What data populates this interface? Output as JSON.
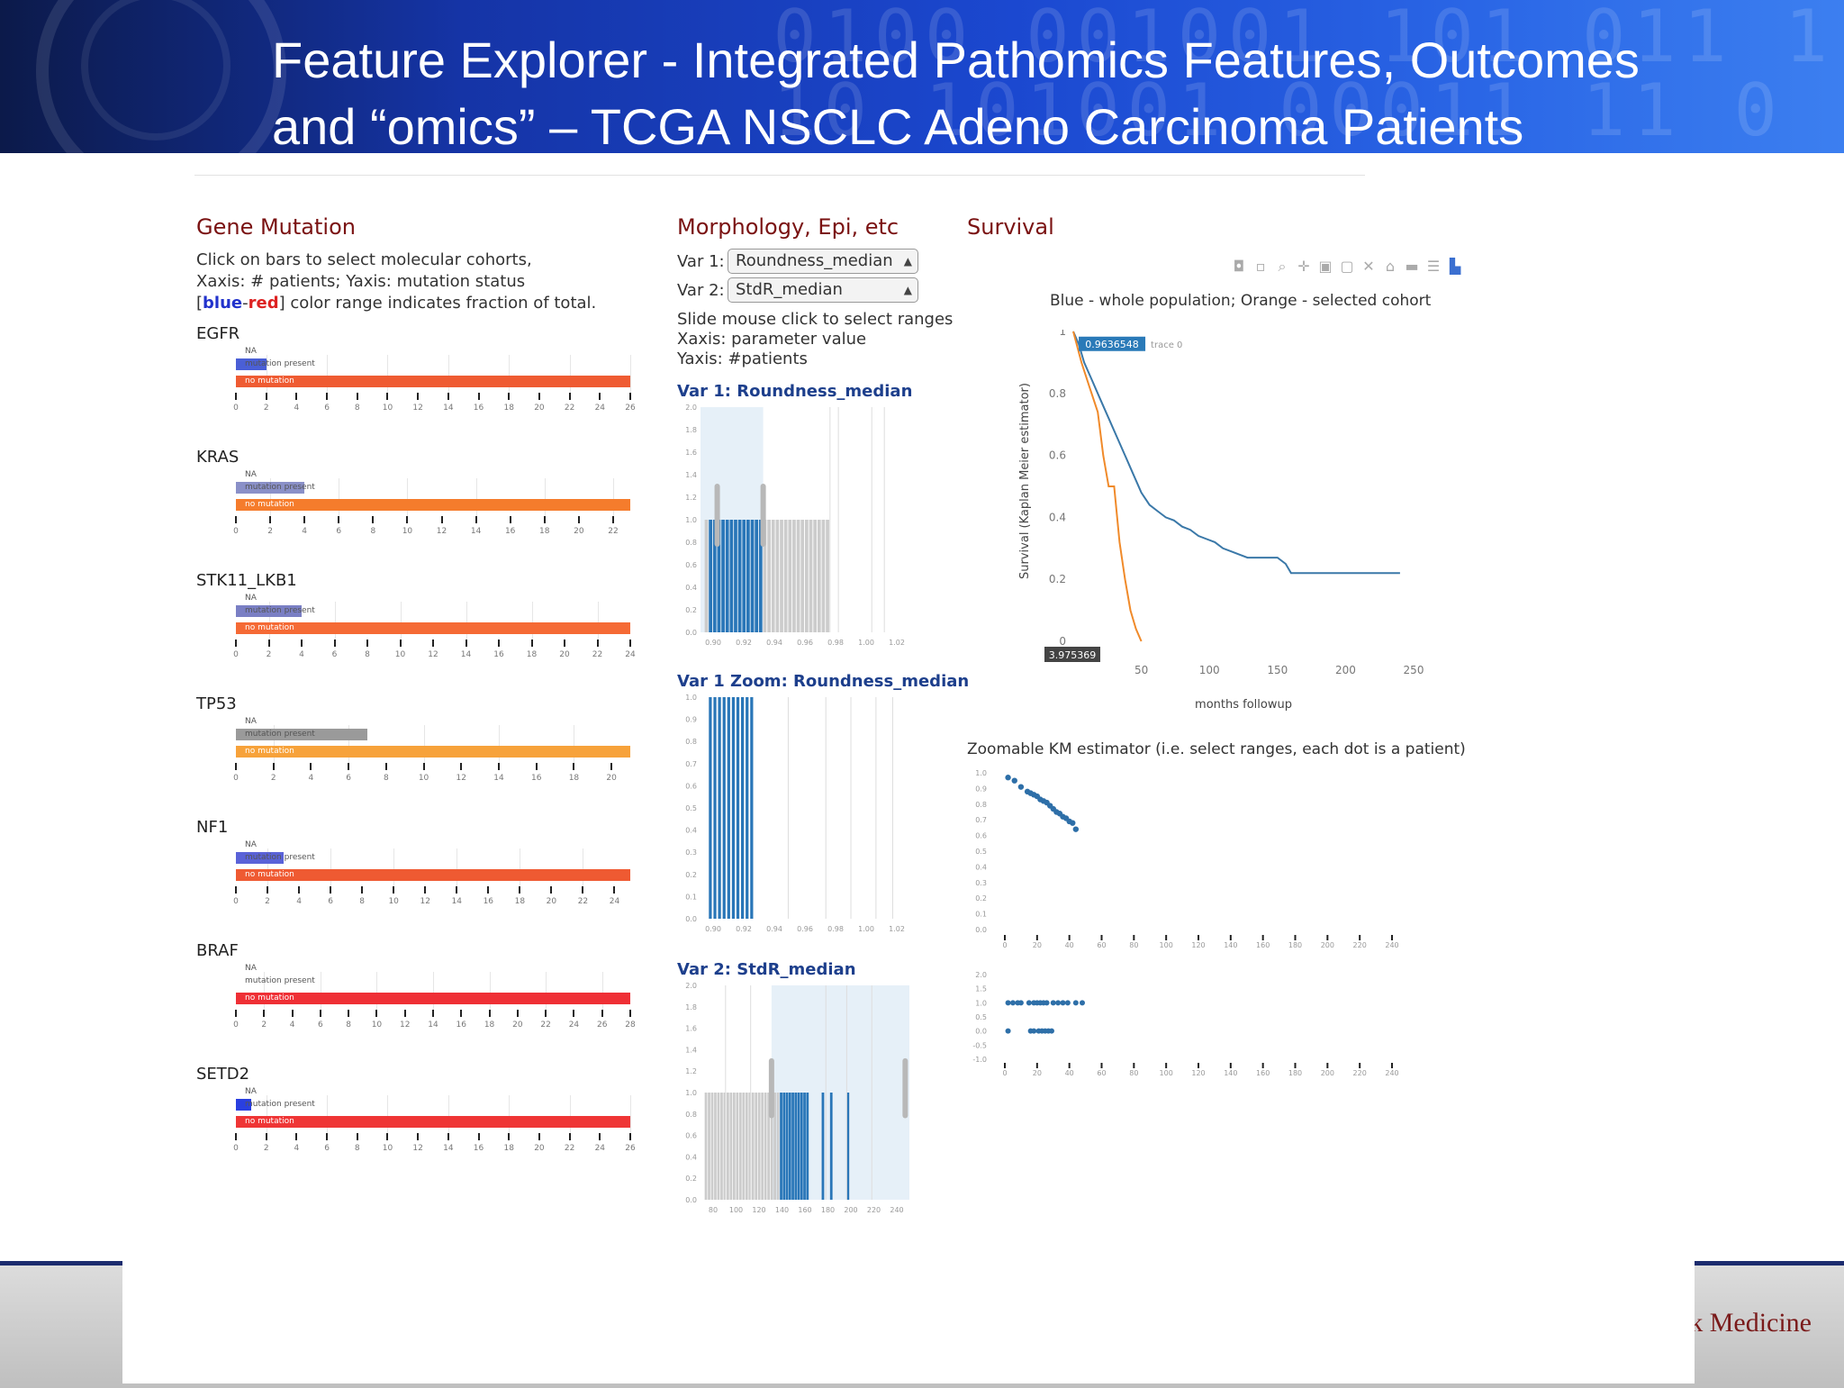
{
  "slide": {
    "title_line1": "Feature Explorer - Integrated  Pathomics Features, Outcomes",
    "title_line2": "and “omics” – TCGA NSCLC Adeno Carcinoma Patients",
    "banner_digits_1": "0100 001001 101 011 1",
    "banner_digits_2": "10 101001 00011 11 0",
    "logo_text": "ook Medicine"
  },
  "colors": {
    "blue": "#2976b8",
    "orange": "#f07f2a",
    "red": "#ef4a3c",
    "lightblue": "#e6f0f8",
    "grey": "#cccccc"
  },
  "gene": {
    "title": "Gene Mutation",
    "desc1": "Click on bars to select molecular cohorts,",
    "desc2": "Xaxis: # patients; Yaxis: mutation status",
    "desc3_a": "[",
    "desc3_blue": "blue",
    "desc3_dash": "-",
    "desc3_red": "red",
    "desc3_b": "] color range indicates fraction of total.",
    "cat_na": "NA",
    "cat_present": "mutation present",
    "cat_none": "no mutation",
    "charts": [
      {
        "name": "EGFR",
        "ticks": [
          "0",
          "2",
          "4",
          "6",
          "8",
          "10",
          "12",
          "14",
          "16",
          "18",
          "20",
          "22",
          "24",
          "26"
        ],
        "max": 26,
        "present": 2,
        "none": 26,
        "pcolor": "#4a5fd6",
        "ncolor": "#ef5b32"
      },
      {
        "name": "KRAS",
        "ticks": [
          "0",
          "2",
          "4",
          "6",
          "8",
          "10",
          "12",
          "14",
          "16",
          "18",
          "20",
          "22"
        ],
        "max": 23,
        "present": 4,
        "none": 23,
        "pcolor": "#8a90c8",
        "ncolor": "#f57c2c"
      },
      {
        "name": "STK11_LKB1",
        "ticks": [
          "0",
          "2",
          "4",
          "6",
          "8",
          "10",
          "12",
          "14",
          "16",
          "18",
          "20",
          "22",
          "24"
        ],
        "max": 24,
        "present": 4,
        "none": 24,
        "pcolor": "#7a7fc4",
        "ncolor": "#f56a35"
      },
      {
        "name": "TP53",
        "ticks": [
          "0",
          "2",
          "4",
          "6",
          "8",
          "10",
          "12",
          "14",
          "16",
          "18",
          "20"
        ],
        "max": 21,
        "present": 7,
        "none": 21,
        "pcolor": "#9a9a9a",
        "ncolor": "#f7a23a"
      },
      {
        "name": "NF1",
        "ticks": [
          "0",
          "2",
          "4",
          "6",
          "8",
          "10",
          "12",
          "14",
          "16",
          "18",
          "20",
          "22",
          "24"
        ],
        "max": 25,
        "present": 3,
        "none": 25,
        "pcolor": "#5a62d8",
        "ncolor": "#ef5a32"
      },
      {
        "name": "BRAF",
        "ticks": [
          "0",
          "2",
          "4",
          "6",
          "8",
          "10",
          "12",
          "14",
          "16",
          "18",
          "20",
          "22",
          "24",
          "26",
          "28"
        ],
        "max": 28,
        "present": 0,
        "none": 28,
        "pcolor": "#4a5fd6",
        "ncolor": "#ef2f35"
      },
      {
        "name": "SETD2",
        "ticks": [
          "0",
          "2",
          "4",
          "6",
          "8",
          "10",
          "12",
          "14",
          "16",
          "18",
          "20",
          "22",
          "24",
          "26"
        ],
        "max": 26,
        "present": 1,
        "none": 26,
        "pcolor": "#2a3fe0",
        "ncolor": "#ef3535"
      }
    ]
  },
  "morph": {
    "title": "Morphology, Epi, etc",
    "var1_label": "Var 1:",
    "var1_value": "Roundness_median",
    "var2_label": "Var 2:",
    "var2_value": "StdR_median",
    "instr1": "Slide mouse click to select ranges",
    "instr2": "Xaxis: parameter value",
    "instr3": "Yaxis: #patients",
    "h1": "Var 1: Roundness_median",
    "h2": "Var 1 Zoom: Roundness_median",
    "h3": "Var 2: StdR_median",
    "hist1": {
      "yticks": [
        "2.0",
        "1.8",
        "1.6",
        "1.4",
        "1.2",
        "1.0",
        "0.8",
        "0.6",
        "0.4",
        "0.2",
        "0.0"
      ],
      "xticks": [
        "0.90",
        "0.92",
        "0.94",
        "0.96",
        "0.98",
        "1.00",
        "1.02"
      ]
    },
    "hist2": {
      "yticks": [
        "1.0",
        "0.9",
        "0.8",
        "0.7",
        "0.6",
        "0.5",
        "0.4",
        "0.3",
        "0.2",
        "0.1",
        "0.0"
      ],
      "xticks": [
        "0.90",
        "0.92",
        "0.94",
        "0.96",
        "0.98",
        "1.00",
        "1.02"
      ]
    },
    "hist3": {
      "yticks": [
        "2.0",
        "1.8",
        "1.6",
        "1.4",
        "1.2",
        "1.0",
        "0.8",
        "0.6",
        "0.4",
        "0.2",
        "0.0"
      ],
      "xticks": [
        "80",
        "100",
        "120",
        "140",
        "160",
        "180",
        "200",
        "220",
        "240"
      ]
    }
  },
  "survival": {
    "title": "Survival",
    "subtitle": "Blue - whole population; Orange - selected cohort",
    "ylabel": "Survival (Kaplan Meier estimator)",
    "xlabel": "months followup",
    "hover_value": "0.9636548",
    "hover_trace": "trace 0",
    "x_hover": "3.975369",
    "toolbar_icons": [
      "camera-icon",
      "save-icon",
      "zoom-icon",
      "pan-icon",
      "zoom-in-icon",
      "zoom-out-icon",
      "autoscale-icon",
      "reset-icon",
      "spike-icon",
      "compare-icon",
      "plotly-logo-icon"
    ],
    "km_title": "Zoomable KM estimator (i.e. select ranges, each dot is a patient)",
    "chart_data": {
      "type": "line",
      "xlim": [
        0,
        250
      ],
      "ylim": [
        0,
        1
      ],
      "xticks": [
        "50",
        "100",
        "150",
        "200",
        "250"
      ],
      "yticks": [
        "1",
        "0.8",
        "0.6",
        "0.4",
        "0.2",
        "0"
      ],
      "series": [
        {
          "color": "#3a78a8",
          "x": [
            0,
            4,
            8,
            14,
            20,
            26,
            32,
            38,
            44,
            50,
            56,
            62,
            68,
            74,
            80,
            86,
            92,
            98,
            104,
            110,
            116,
            122,
            128,
            140,
            150,
            156,
            160,
            170,
            200,
            240
          ],
          "y": [
            1,
            0.96,
            0.9,
            0.84,
            0.78,
            0.72,
            0.66,
            0.6,
            0.54,
            0.48,
            0.44,
            0.42,
            0.4,
            0.39,
            0.37,
            0.36,
            0.34,
            0.33,
            0.32,
            0.3,
            0.29,
            0.28,
            0.27,
            0.27,
            0.27,
            0.25,
            0.22,
            0.22,
            0.22,
            0.22
          ]
        },
        {
          "color": "#f08a2a",
          "x": [
            0,
            6,
            12,
            18,
            22,
            26,
            30,
            34,
            38,
            42,
            46,
            50
          ],
          "y": [
            1,
            0.9,
            0.82,
            0.74,
            0.6,
            0.5,
            0.5,
            0.32,
            0.2,
            0.1,
            0.04,
            0
          ]
        }
      ]
    },
    "km_zoom": {
      "yticks": [
        "1.0",
        "0.9",
        "0.8",
        "0.7",
        "0.6",
        "0.5",
        "0.4",
        "0.3",
        "0.2",
        "0.1",
        "0.0"
      ],
      "xticks": [
        "0",
        "20",
        "40",
        "60",
        "80",
        "100",
        "120",
        "140",
        "160",
        "180",
        "200",
        "220",
        "240"
      ],
      "x": [
        2,
        6,
        10,
        14,
        16,
        18,
        20,
        22,
        24,
        26,
        28,
        30,
        32,
        34,
        36,
        38,
        40,
        42,
        44
      ],
      "y": [
        0.97,
        0.95,
        0.91,
        0.88,
        0.87,
        0.86,
        0.85,
        0.83,
        0.82,
        0.81,
        0.79,
        0.77,
        0.75,
        0.74,
        0.72,
        0.71,
        0.69,
        0.68,
        0.64
      ]
    },
    "km_status": {
      "yticks": [
        "2.0",
        "1.5",
        "1.0",
        "0.5",
        "0.0",
        "-0.5",
        "-1.0"
      ],
      "xticks": [
        "0",
        "20",
        "40",
        "60",
        "80",
        "100",
        "120",
        "140",
        "160",
        "180",
        "200",
        "220",
        "240"
      ],
      "row1": [
        2,
        5,
        8,
        10,
        15,
        18,
        20,
        22,
        24,
        26,
        30,
        33,
        36,
        39,
        44,
        48
      ],
      "row2": [
        2,
        16,
        18,
        21,
        23,
        25,
        27,
        29
      ]
    }
  }
}
